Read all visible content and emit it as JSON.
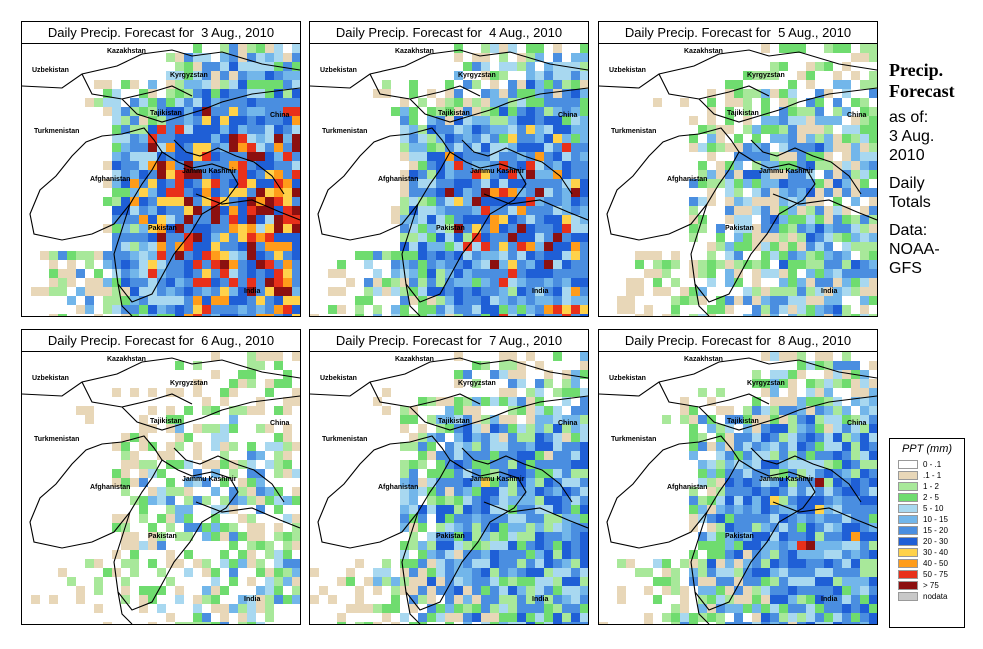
{
  "panels": [
    {
      "title": "Daily Precip. Forecast for  3 Aug., 2010",
      "intensity": 1.0
    },
    {
      "title": "Daily Precip. Forecast for  4 Aug., 2010",
      "intensity": 0.85
    },
    {
      "title": "Daily Precip. Forecast for  5 Aug., 2010",
      "intensity": 0.55
    },
    {
      "title": "Daily Precip. Forecast for  6 Aug., 2010",
      "intensity": 0.4
    },
    {
      "title": "Daily Precip. Forecast for  7 Aug., 2010",
      "intensity": 0.7
    },
    {
      "title": "Daily Precip. Forecast for  8 Aug., 2010",
      "intensity": 0.75
    }
  ],
  "map_labels": [
    "Kazakhstan",
    "Uzbekistan",
    "Kyrgyzstan",
    "Tajikistan",
    "China",
    "Turkmenistan",
    "Afghanistan",
    "Jammu Kashmir",
    "Pakistan",
    "India"
  ],
  "sidebar": {
    "title_line1": "Precip.",
    "title_line2": "Forecast",
    "as_of_label": "as of:",
    "date_line1": "3 Aug.",
    "date_line2": "2010",
    "totals_line1": "Daily",
    "totals_line2": "Totals",
    "data_line1": "Data:",
    "data_line2": "NOAA-",
    "data_line3": "GFS"
  },
  "legend": {
    "title": "PPT (mm)",
    "items": [
      {
        "label": "0 - .1",
        "color": "#ffffff"
      },
      {
        "label": ".1 - 1",
        "color": "#e8d7b8"
      },
      {
        "label": "1 - 2",
        "color": "#a8e89a"
      },
      {
        "label": "2 - 5",
        "color": "#6fdc6f"
      },
      {
        "label": "5 - 10",
        "color": "#a8d8f0"
      },
      {
        "label": "10 - 15",
        "color": "#72b6ea"
      },
      {
        "label": "15 - 20",
        "color": "#4a8ee0"
      },
      {
        "label": "20 - 30",
        "color": "#1f5fd6"
      },
      {
        "label": "30 - 40",
        "color": "#ffd24a"
      },
      {
        "label": "40 - 50",
        "color": "#ff9c1a"
      },
      {
        "label": "50 - 75",
        "color": "#e8301a"
      },
      {
        "label": "> 75",
        "color": "#8c1010"
      },
      {
        "label": "nodata",
        "color": "#c8c8c8"
      }
    ]
  }
}
